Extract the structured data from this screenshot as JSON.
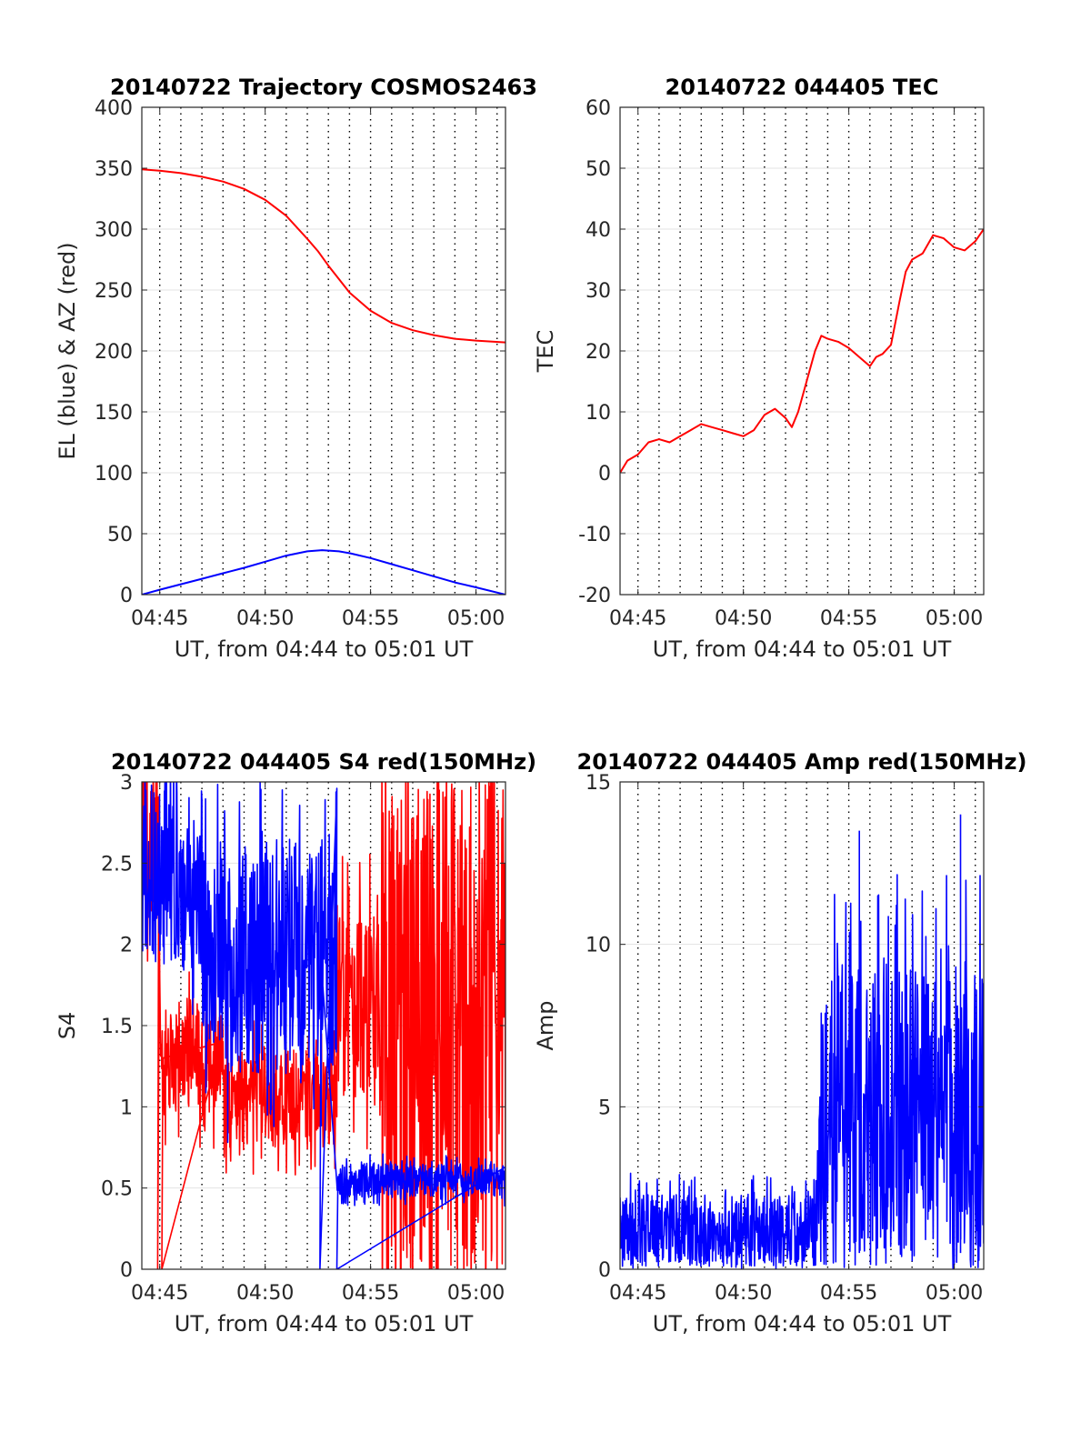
{
  "figure": {
    "background": "#ffffff"
  },
  "chart_data": [
    {
      "id": "trajectory",
      "type": "line",
      "title": "20140722 Trajectory COSMOS2463",
      "xlabel": "UT, from 04:44 to 05:01 UT",
      "ylabel": "EL (blue) & AZ (red)",
      "xlim": [
        44.15,
        61.4
      ],
      "ylim": [
        0,
        400
      ],
      "xticks": [
        45,
        50,
        55,
        60
      ],
      "xtick_labels": [
        "04:45",
        "04:50",
        "04:55",
        "05:00"
      ],
      "yticks": [
        0,
        50,
        100,
        150,
        200,
        250,
        300,
        350,
        400
      ],
      "ytick_labels": [
        "0",
        "50",
        "100",
        "150",
        "200",
        "250",
        "300",
        "350",
        "400"
      ],
      "grid": {
        "vertical_dotted_minutes": [
          44,
          45,
          46,
          47,
          48,
          49,
          50,
          51,
          52,
          53,
          54,
          55,
          56,
          57,
          58,
          59,
          60,
          61
        ],
        "horizontal": true
      },
      "series": [
        {
          "name": "EL",
          "color": "#0000ff",
          "x": [
            44.15,
            45,
            46,
            47,
            48,
            49,
            50,
            51,
            52,
            52.7,
            53.5,
            54,
            55,
            56,
            57,
            58,
            59,
            60,
            61.4
          ],
          "y": [
            0,
            4,
            8.5,
            13,
            17.5,
            22,
            27,
            32,
            35.5,
            36.5,
            35.5,
            34,
            30,
            25,
            20,
            15,
            10,
            6,
            0
          ]
        },
        {
          "name": "AZ",
          "color": "#ff0000",
          "x": [
            44.15,
            45,
            46,
            47,
            48,
            49,
            50,
            51,
            52,
            52.5,
            53,
            54,
            55,
            56,
            57,
            58,
            59,
            60,
            61.4
          ],
          "y": [
            349,
            348,
            346,
            343,
            339,
            333,
            324,
            311,
            292,
            282,
            270,
            248,
            233,
            223,
            217,
            213,
            210,
            208.5,
            207
          ]
        }
      ]
    },
    {
      "id": "tec",
      "type": "line",
      "title": "20140722 044405 TEC",
      "xlabel": "UT, from 04:44 to 05:01 UT",
      "ylabel": "TEC",
      "xlim": [
        44.15,
        61.4
      ],
      "ylim": [
        -20,
        60
      ],
      "xticks": [
        45,
        50,
        55,
        60
      ],
      "xtick_labels": [
        "04:45",
        "04:50",
        "04:55",
        "05:00"
      ],
      "yticks": [
        -20,
        -10,
        0,
        10,
        20,
        30,
        40,
        50,
        60
      ],
      "ytick_labels": [
        "-20",
        "-10",
        "0",
        "10",
        "20",
        "30",
        "40",
        "50",
        "60"
      ],
      "grid": {
        "vertical_dotted_minutes": [
          44,
          45,
          46,
          47,
          48,
          49,
          50,
          51,
          52,
          53,
          54,
          55,
          56,
          57,
          58,
          59,
          60,
          61
        ],
        "horizontal": true
      },
      "series": [
        {
          "name": "TEC",
          "color": "#ff0000",
          "x": [
            44.15,
            44.5,
            45,
            45.5,
            46,
            46.5,
            47,
            47.5,
            48,
            48.5,
            49,
            49.5,
            50,
            50.5,
            51,
            51.5,
            52,
            52.3,
            52.6,
            53,
            53.4,
            53.7,
            54,
            54.5,
            55,
            55.5,
            56,
            56.3,
            56.6,
            57,
            57.4,
            57.7,
            58,
            58.5,
            59,
            59.5,
            60,
            60.5,
            61,
            61.4
          ],
          "y": [
            0,
            2,
            3,
            5,
            5.5,
            5,
            6,
            7,
            8,
            7.5,
            7,
            6.5,
            6,
            7,
            9.5,
            10.5,
            9,
            7.5,
            10,
            15,
            20,
            22.5,
            22,
            21.5,
            20.5,
            19,
            17.5,
            19,
            19.5,
            21,
            28,
            33,
            35,
            36,
            39,
            38.5,
            37,
            36.5,
            38,
            40
          ]
        }
      ]
    },
    {
      "id": "s4",
      "type": "line",
      "title": "20140722 044405 S4 red(150MHz)",
      "xlabel": "UT, from 04:44 to 05:01 UT",
      "ylabel": "S4",
      "xlim": [
        44.15,
        61.4
      ],
      "ylim": [
        0,
        3
      ],
      "xticks": [
        45,
        50,
        55,
        60
      ],
      "xtick_labels": [
        "04:45",
        "04:50",
        "04:55",
        "05:00"
      ],
      "yticks": [
        0,
        0.5,
        1,
        1.5,
        2,
        2.5,
        3
      ],
      "ytick_labels": [
        "0",
        "0.5",
        "1",
        "1.5",
        "2",
        "2.5",
        "3"
      ],
      "grid": {
        "vertical_dotted_minutes": [
          44,
          45,
          46,
          47,
          48,
          49,
          50,
          51,
          52,
          53,
          54,
          55,
          56,
          57,
          58,
          59,
          60,
          61
        ],
        "horizontal": true
      },
      "series": [
        {
          "name": "red (150MHz)",
          "color": "#ff0000",
          "style": "noisy",
          "segments": [
            {
              "x0": 44.15,
              "x1": 45.0,
              "center": 2.6,
              "spread": 0.45,
              "dropouts": [
                44.9
              ]
            },
            {
              "x0": 45.0,
              "x1": 48.0,
              "center": 1.3,
              "spread": 0.35,
              "dropouts": [
                45.1
              ]
            },
            {
              "x0": 48.0,
              "x1": 53.4,
              "center": 1.05,
              "spread": 0.3
            },
            {
              "x0": 53.4,
              "x1": 55.5,
              "center": 1.6,
              "spread": 0.6
            },
            {
              "x0": 55.5,
              "x1": 61.4,
              "center": 1.5,
              "spread": 1.5
            }
          ]
        },
        {
          "name": "blue",
          "color": "#0000ff",
          "style": "noisy",
          "segments": [
            {
              "x0": 44.15,
              "x1": 47.0,
              "center": 2.4,
              "spread": 0.55
            },
            {
              "x0": 47.0,
              "x1": 53.4,
              "center": 1.9,
              "spread": 0.7,
              "dropouts": [
                52.6
              ]
            },
            {
              "x0": 53.4,
              "x1": 61.4,
              "center": 0.55,
              "spread": 0.1,
              "dropouts": [
                53.4
              ]
            }
          ]
        }
      ]
    },
    {
      "id": "amp",
      "type": "line",
      "title": "20140722 044405 Amp red(150MHz)",
      "xlabel": "UT, from 04:44 to 05:01 UT",
      "ylabel": "Amp",
      "xlim": [
        44.15,
        61.4
      ],
      "ylim": [
        0,
        15
      ],
      "xticks": [
        45,
        50,
        55,
        60
      ],
      "xtick_labels": [
        "04:45",
        "04:50",
        "04:55",
        "05:00"
      ],
      "yticks": [
        0,
        5,
        10,
        15
      ],
      "ytick_labels": [
        "0",
        "5",
        "10",
        "15"
      ],
      "grid": {
        "vertical_dotted_minutes": [
          44,
          45,
          46,
          47,
          48,
          49,
          50,
          51,
          52,
          53,
          54,
          55,
          56,
          57,
          58,
          59,
          60,
          61
        ],
        "horizontal": true
      },
      "series": [
        {
          "name": "Amp",
          "color": "#0000ff",
          "style": "noisy",
          "segments": [
            {
              "x0": 44.15,
              "x1": 53.5,
              "center": 1.2,
              "spread": 1.1,
              "floor": 0
            },
            {
              "x0": 53.5,
              "x1": 61.4,
              "center": 5,
              "spread": 4.5,
              "floor": 0
            }
          ],
          "peaks": [
            {
              "x": 55.5,
              "y": 13.5
            },
            {
              "x": 60.3,
              "y": 14
            }
          ]
        }
      ]
    }
  ]
}
